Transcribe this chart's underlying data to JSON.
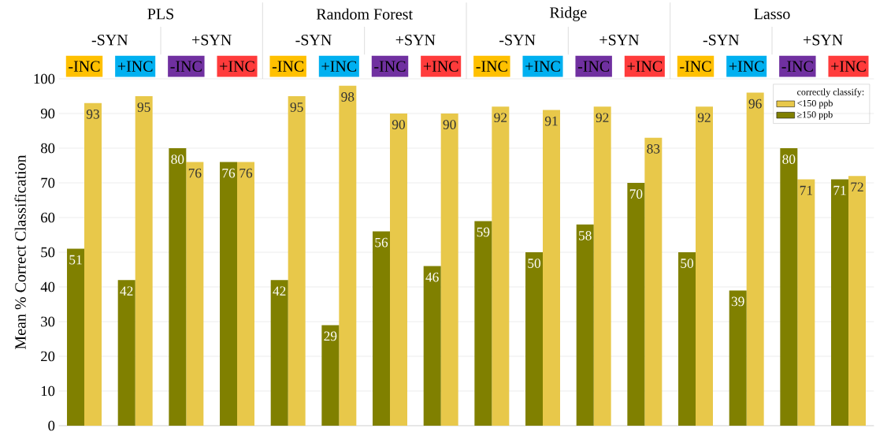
{
  "chart_data": {
    "type": "bar",
    "ylabel": "Mean % Correct Classification",
    "legend_title": "correctly classify:",
    "categories": [
      "-INC",
      "+INC",
      "-INC",
      "+INC",
      "-INC",
      "+INC",
      "-INC",
      "+INC",
      "-INC",
      "+INC",
      "-INC",
      "+INC",
      "-INC",
      "+INC",
      "-INC",
      "+INC"
    ],
    "series": [
      {
        "name": "≥150 ppb",
        "color": "#808000",
        "values": [
          51,
          42,
          80,
          76,
          42,
          29,
          56,
          46,
          59,
          50,
          58,
          70,
          50,
          39,
          80,
          71
        ]
      },
      {
        "name": "<150 ppb",
        "color": "#e8c84a",
        "values": [
          93,
          95,
          76,
          76,
          95,
          98,
          90,
          90,
          92,
          91,
          92,
          83,
          92,
          96,
          71,
          72
        ]
      }
    ],
    "annotations": [
      "PLS",
      "Random Forest",
      "Ridge",
      "Lasso",
      "-SYN",
      "+SYN",
      "-SYN",
      "+SYN",
      "-SYN",
      "+SYN",
      "-SYN",
      "+SYN"
    ],
    "ylim": [
      0,
      100
    ],
    "yticks": [
      0,
      10,
      20,
      30,
      40,
      50,
      60,
      70,
      80,
      90,
      100
    ],
    "grid": "y",
    "legend": "top right",
    "data_labels": true
  }
}
